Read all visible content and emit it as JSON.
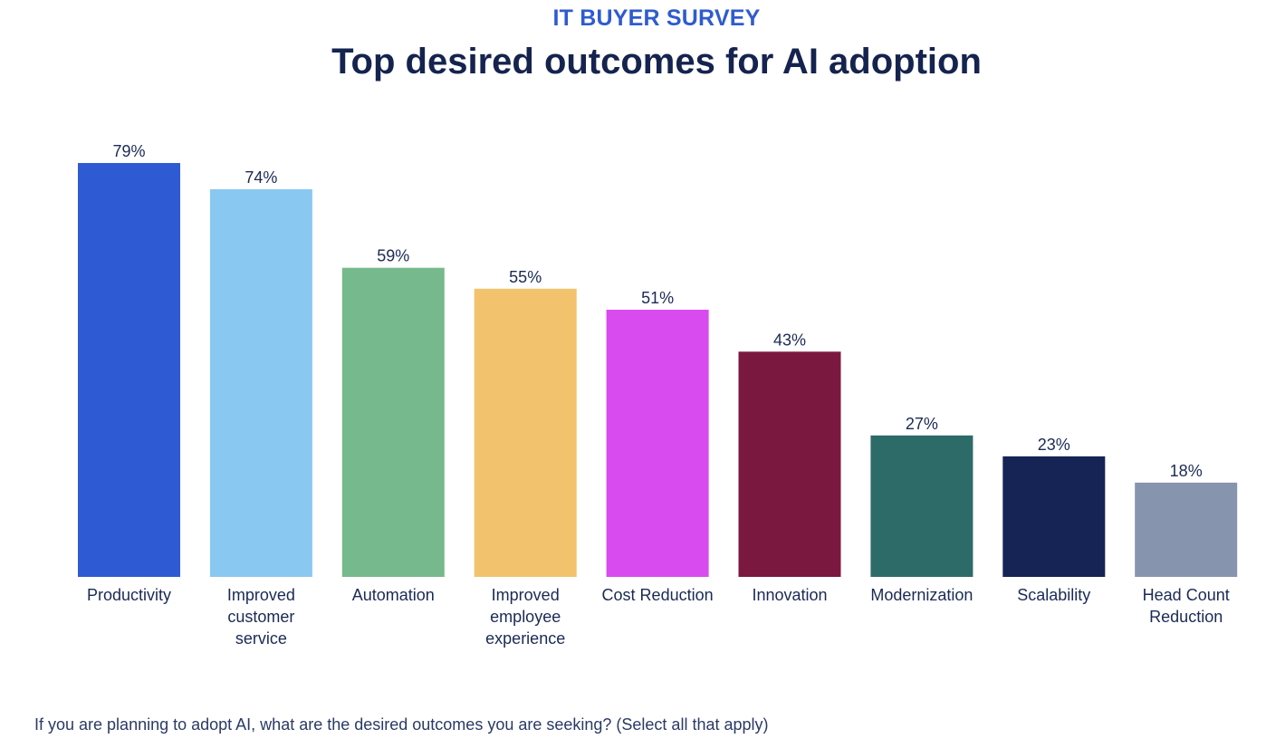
{
  "header": {
    "kicker": "IT BUYER SURVEY",
    "title": "Top desired outcomes for AI adoption"
  },
  "footer": {
    "question": "If you are planning to adopt AI, what are the desired outcomes you are seeking? (Select all that apply)"
  },
  "chart_data": {
    "type": "bar",
    "title": "Top desired outcomes for AI adoption",
    "xlabel": "",
    "ylabel": "",
    "ylim": [
      0,
      79
    ],
    "grid": false,
    "legend": "none",
    "categories": [
      [
        "Productivity"
      ],
      [
        "Improved",
        "customer",
        "service"
      ],
      [
        "Automation"
      ],
      [
        "Improved",
        "employee",
        "experience"
      ],
      [
        "Cost Reduction"
      ],
      [
        "Innovation"
      ],
      [
        "Modernization"
      ],
      [
        "Scalability"
      ],
      [
        "Head Count",
        "Reduction"
      ]
    ],
    "values": [
      79,
      74,
      59,
      55,
      51,
      43,
      27,
      23,
      18
    ],
    "value_labels": [
      "79%",
      "74%",
      "59%",
      "55%",
      "51%",
      "43%",
      "27%",
      "23%",
      "18%"
    ],
    "colors": [
      "#2e5bd3",
      "#89c8f1",
      "#76b98c",
      "#f2c26c",
      "#d84bee",
      "#7b1840",
      "#2d6b69",
      "#152455",
      "#8794ae"
    ]
  }
}
